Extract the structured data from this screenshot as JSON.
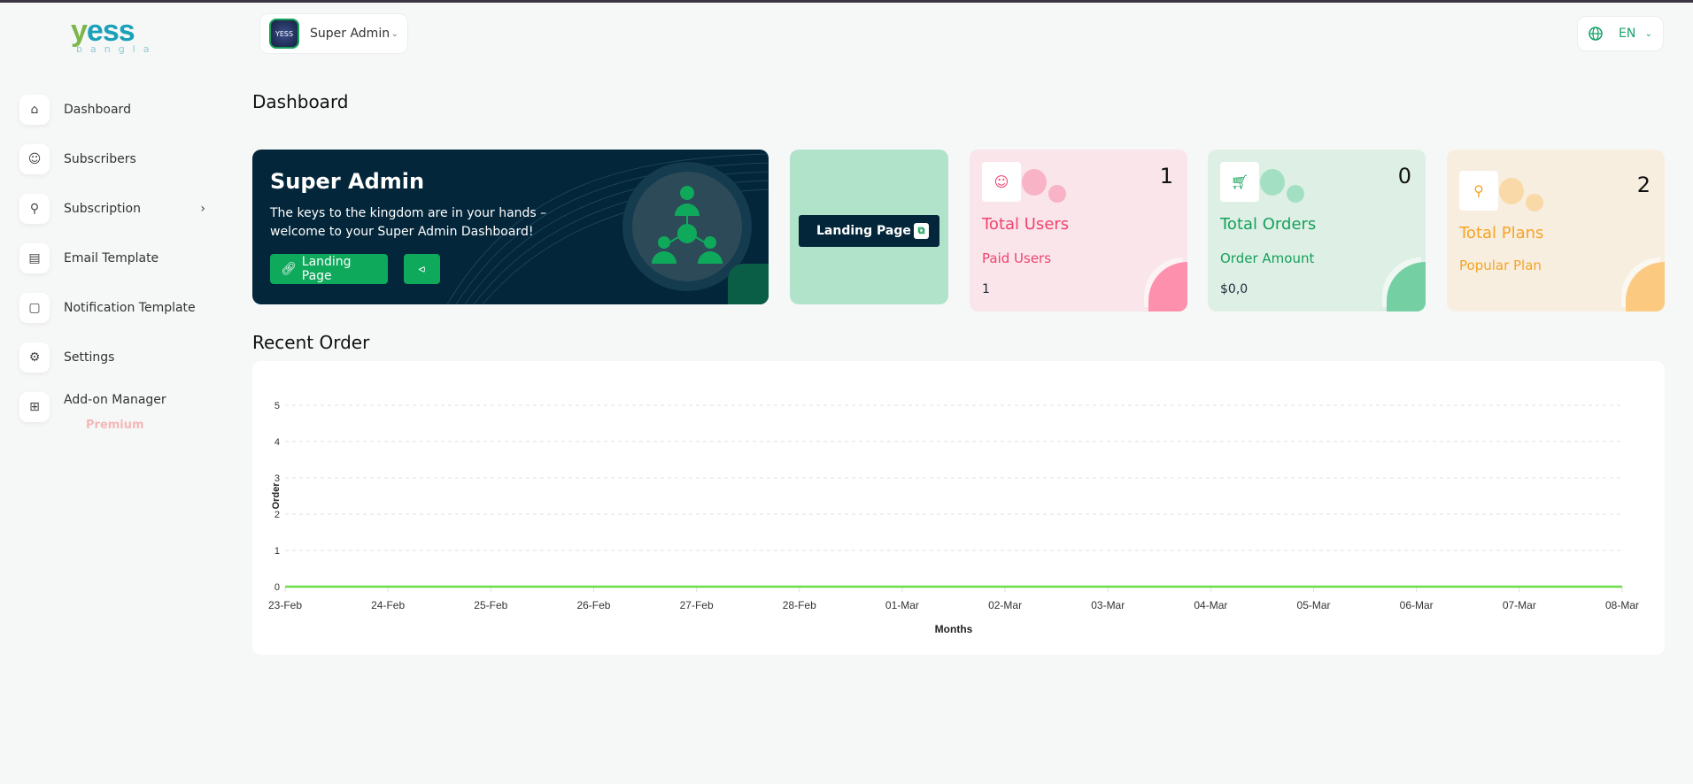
{
  "logo": {
    "text": "yess",
    "sub": "bangla"
  },
  "header": {
    "user": "Super Admin",
    "avatar_text": "YESS",
    "language": "EN"
  },
  "sidebar": {
    "items": [
      {
        "label": "Dashboard",
        "icon": "home-icon"
      },
      {
        "label": "Subscribers",
        "icon": "users-icon"
      },
      {
        "label": "Subscription",
        "icon": "trophy-icon"
      },
      {
        "label": "Email Template",
        "icon": "template-icon"
      },
      {
        "label": "Notification Template",
        "icon": "notification-icon"
      },
      {
        "label": "Settings",
        "icon": "gear-icon"
      },
      {
        "label": "Add-on Manager",
        "icon": "grid-icon",
        "badge": "Premium"
      }
    ]
  },
  "page": {
    "title": "Dashboard",
    "recent_title": "Recent Order"
  },
  "hero": {
    "title": "Super Admin",
    "description": "The keys to the kingdom are in your hands – welcome to your Super Admin Dashboard!",
    "landing_button": "Landing Page"
  },
  "landing_card": {
    "button": "Landing Page"
  },
  "stats": [
    {
      "title": "Total Users",
      "count": "1",
      "sub": "Paid Users",
      "value": "1",
      "color": "#f0436f"
    },
    {
      "title": "Total Orders",
      "count": "0",
      "sub": "Order Amount",
      "value": "$0,0",
      "color": "#16a05a"
    },
    {
      "title": "Total Plans",
      "count": "2",
      "sub": "Popular Plan",
      "value": "",
      "color": "#f5a423"
    }
  ],
  "chart_data": {
    "type": "line",
    "categories": [
      "23-Feb",
      "24-Feb",
      "25-Feb",
      "26-Feb",
      "27-Feb",
      "28-Feb",
      "01-Mar",
      "02-Mar",
      "03-Mar",
      "04-Mar",
      "05-Mar",
      "06-Mar",
      "07-Mar",
      "08-Mar"
    ],
    "values": [
      0,
      0,
      0,
      0,
      0,
      0,
      0,
      0,
      0,
      0,
      0,
      0,
      0,
      0
    ],
    "xlabel": "Months",
    "ylabel": "Order",
    "ylim": [
      0,
      5
    ],
    "yticks": [
      0,
      1,
      2,
      3,
      4,
      5
    ],
    "grid": true,
    "color": "#6fdc4a"
  }
}
